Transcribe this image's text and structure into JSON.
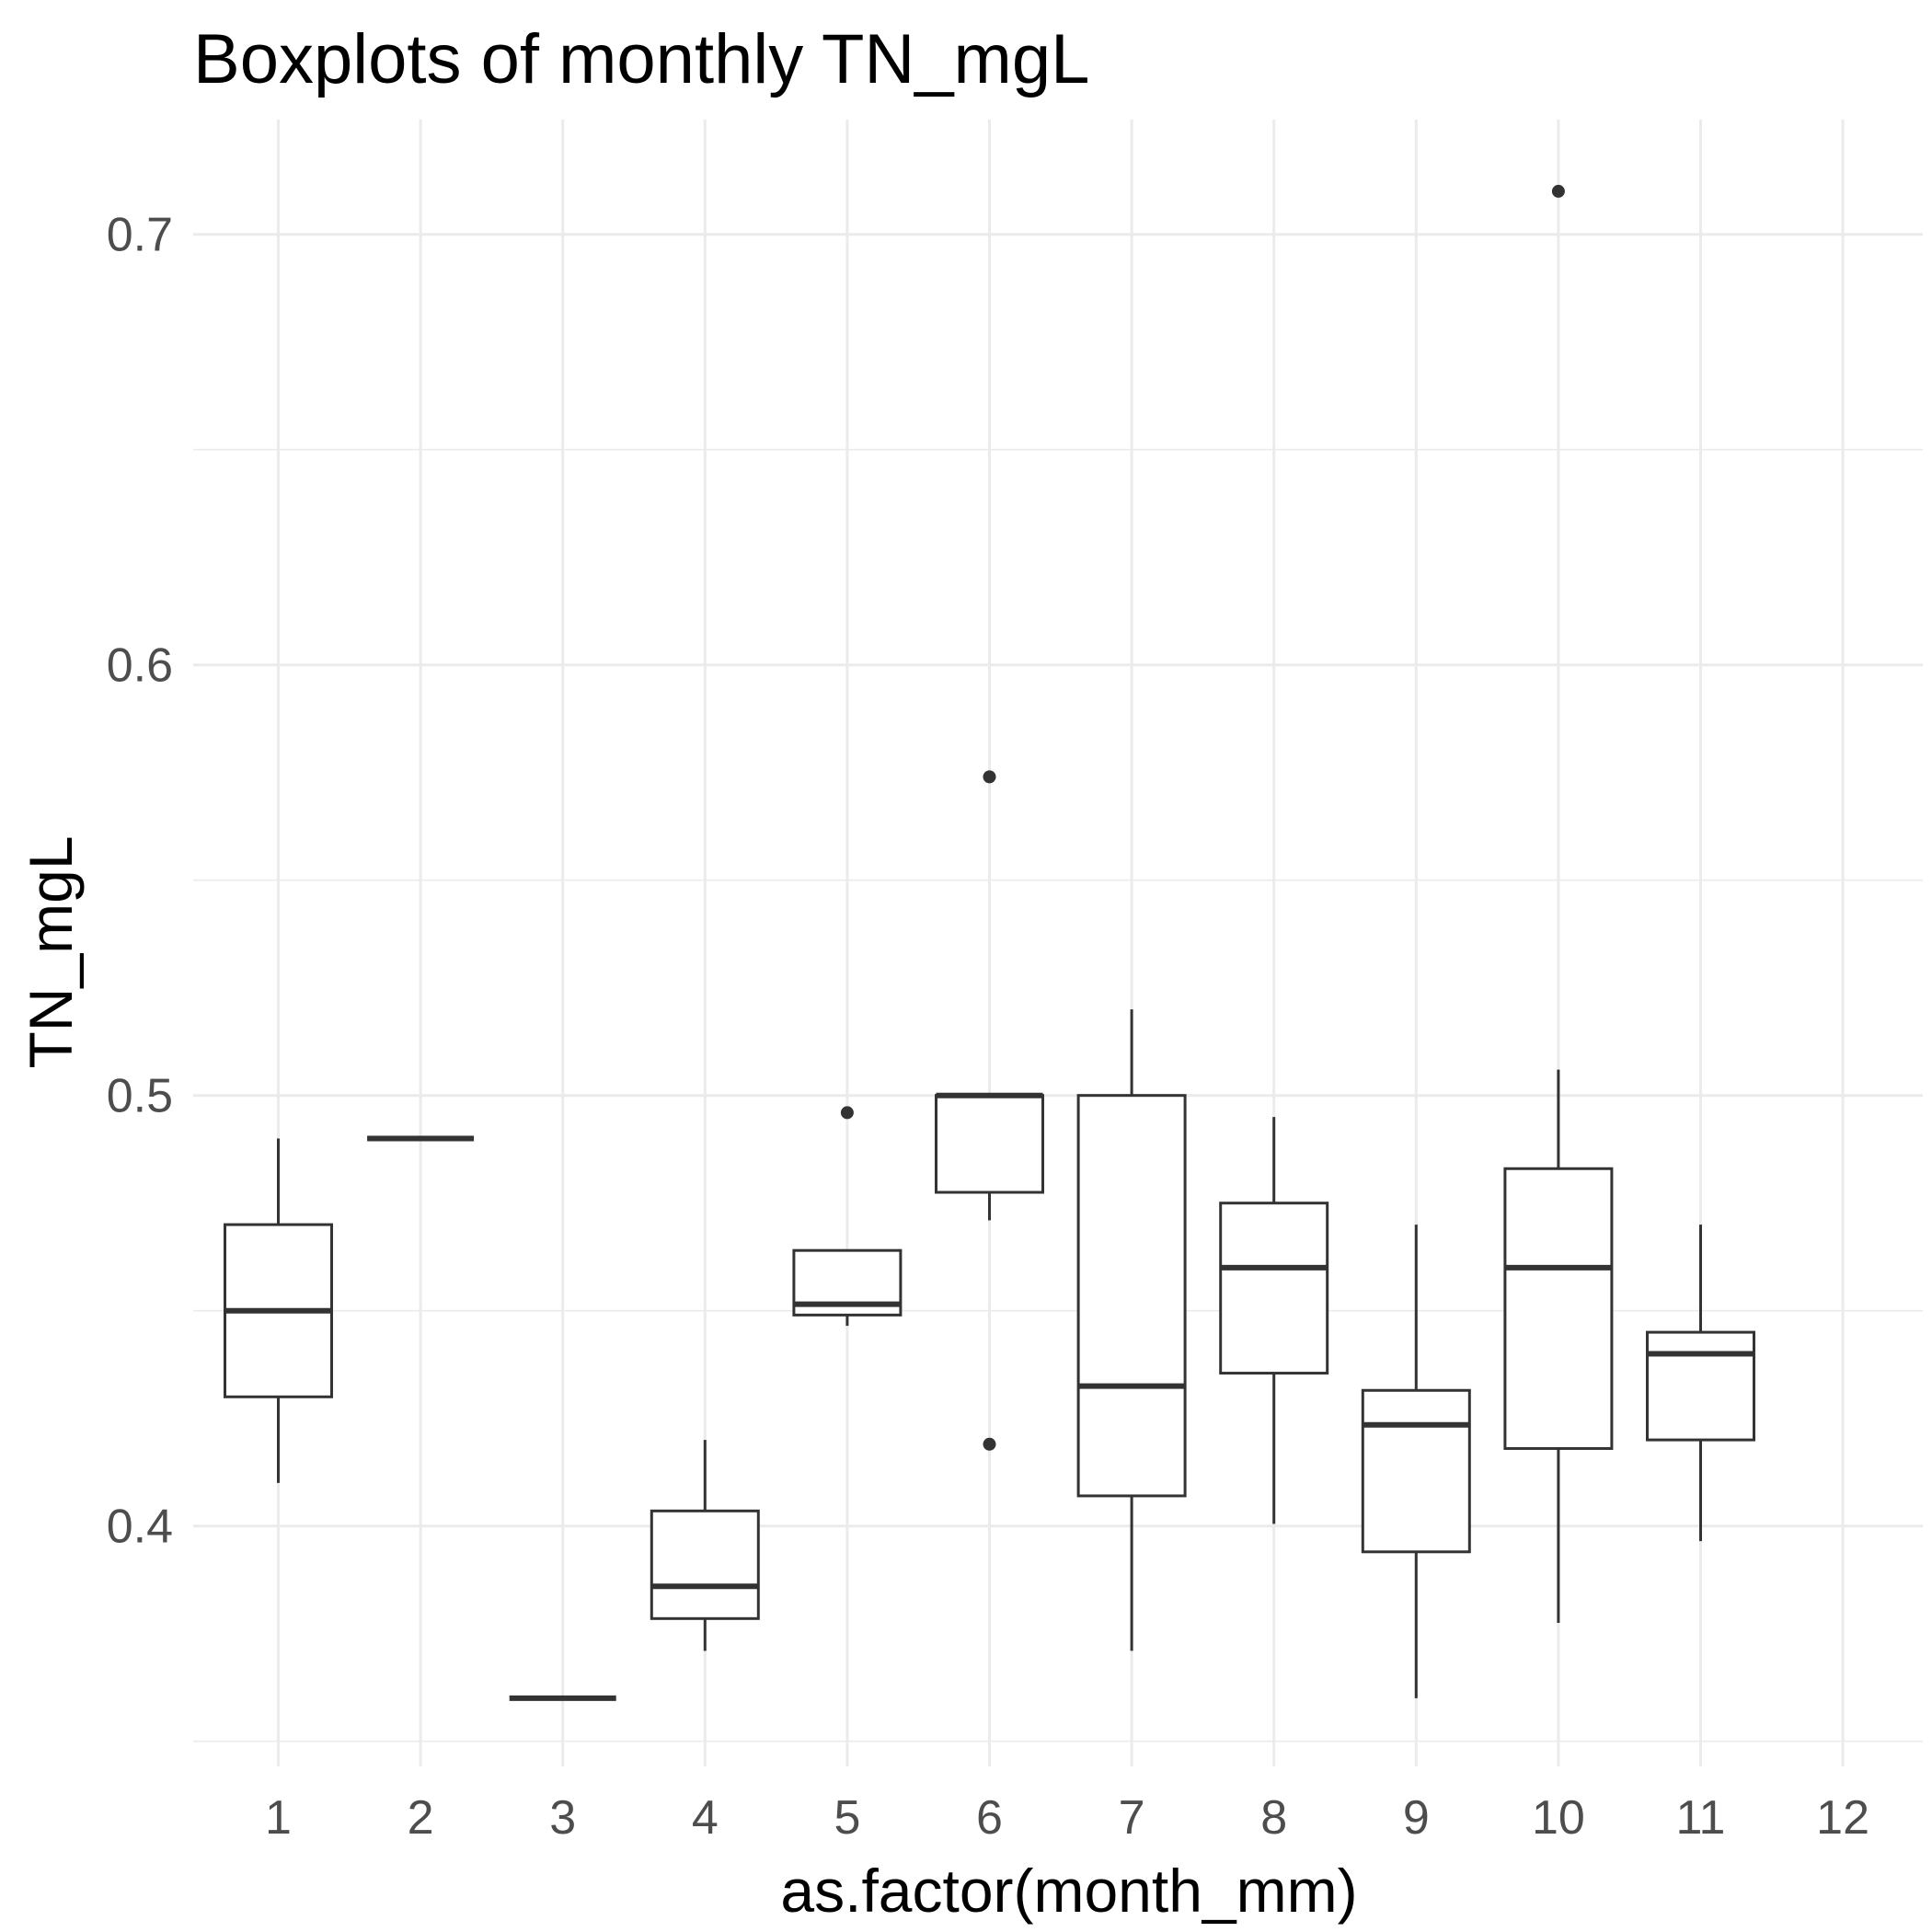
{
  "chart_data": {
    "type": "boxplot",
    "title": "Boxplots of monthly TN_mgL",
    "xlabel": "as.factor(month_mm)",
    "ylabel": "TN_mgL",
    "ylim": [
      0.35,
      0.72
    ],
    "y_major_ticks": [
      0.4,
      0.5,
      0.6,
      0.7
    ],
    "y_tick_labels": [
      "0.4",
      "0.5",
      "0.6",
      "0.7"
    ],
    "y_minor_ticks": [
      0.35,
      0.45,
      0.55,
      0.65
    ],
    "categories": [
      "1",
      "2",
      "3",
      "4",
      "5",
      "6",
      "7",
      "8",
      "9",
      "10",
      "11",
      "12"
    ],
    "grid": true,
    "legend": "none",
    "boxes": [
      {
        "category": "1",
        "whisker_low": 0.41,
        "q1": 0.43,
        "median": 0.45,
        "q3": 0.47,
        "whisker_high": 0.49,
        "outliers": []
      },
      {
        "category": "2",
        "whisker_low": 0.49,
        "q1": 0.49,
        "median": 0.49,
        "q3": 0.49,
        "whisker_high": 0.49,
        "outliers": []
      },
      {
        "category": "3",
        "whisker_low": 0.36,
        "q1": 0.36,
        "median": 0.36,
        "q3": 0.36,
        "whisker_high": 0.36,
        "outliers": []
      },
      {
        "category": "4",
        "whisker_low": 0.371,
        "q1": 0.3785,
        "median": 0.386,
        "q3": 0.4035,
        "whisker_high": 0.42,
        "outliers": []
      },
      {
        "category": "5",
        "whisker_low": 0.4465,
        "q1": 0.449,
        "median": 0.4515,
        "q3": 0.464,
        "whisker_high": 0.464,
        "outliers": [
          0.496
        ]
      },
      {
        "category": "6",
        "whisker_low": 0.471,
        "q1": 0.4775,
        "median": 0.5,
        "q3": 0.5,
        "whisker_high": 0.5,
        "outliers": [
          0.574,
          0.419
        ]
      },
      {
        "category": "7",
        "whisker_low": 0.371,
        "q1": 0.407,
        "median": 0.4325,
        "q3": 0.5,
        "whisker_high": 0.52,
        "outliers": []
      },
      {
        "category": "8",
        "whisker_low": 0.4005,
        "q1": 0.4355,
        "median": 0.46,
        "q3": 0.475,
        "whisker_high": 0.495,
        "outliers": []
      },
      {
        "category": "9",
        "whisker_low": 0.36,
        "q1": 0.394,
        "median": 0.4235,
        "q3": 0.4315,
        "whisker_high": 0.47,
        "outliers": []
      },
      {
        "category": "10",
        "whisker_low": 0.3775,
        "q1": 0.418,
        "median": 0.46,
        "q3": 0.483,
        "whisker_high": 0.506,
        "outliers": [
          0.71
        ]
      },
      {
        "category": "11",
        "whisker_low": 0.3965,
        "q1": 0.42,
        "median": 0.44,
        "q3": 0.445,
        "whisker_high": 0.47,
        "outliers": []
      },
      {
        "category": "12",
        "whisker_low": null,
        "q1": null,
        "median": null,
        "q3": null,
        "whisker_high": null,
        "outliers": []
      }
    ],
    "colors": {
      "box_stroke": "#333333",
      "box_fill": "#ffffff",
      "grid": "#ebebeb",
      "tick_text": "#4d4d4d",
      "title_text": "#000000"
    }
  }
}
